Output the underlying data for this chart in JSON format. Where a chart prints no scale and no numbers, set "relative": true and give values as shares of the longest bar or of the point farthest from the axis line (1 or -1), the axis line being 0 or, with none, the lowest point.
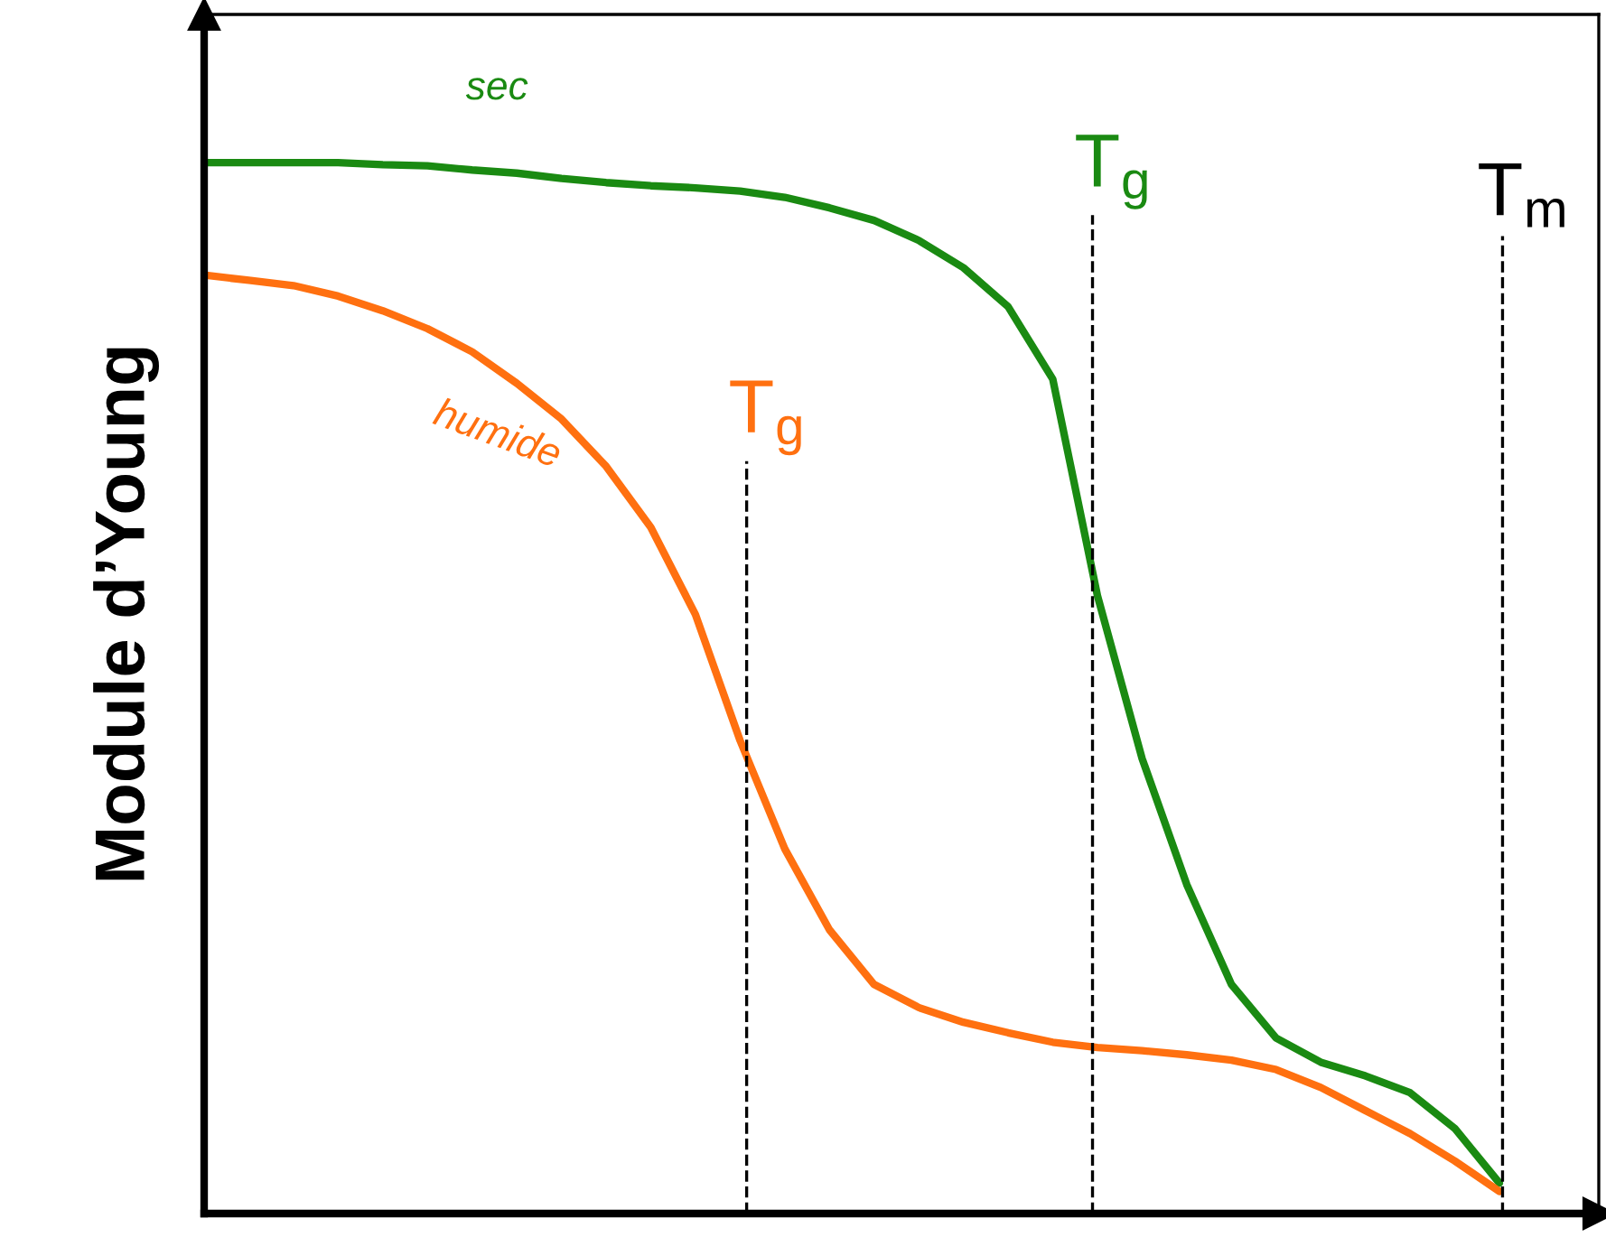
{
  "chart_data": {
    "type": "line",
    "relative": true,
    "ylabel": "Module d’Young",
    "marker": "none",
    "line_style": "solid",
    "categories": [
      null,
      null,
      null,
      null,
      null,
      null,
      null,
      null,
      null,
      null,
      null,
      null,
      null,
      null,
      null,
      null,
      null,
      null,
      null,
      null,
      null,
      null,
      null,
      null,
      null,
      null,
      null,
      null,
      null,
      null
    ],
    "series": [
      {
        "name": "sec",
        "color": "#1a8a12",
        "values": [
          1.0,
          1.0,
          1.0,
          1.0,
          0.998,
          0.997,
          0.993,
          0.99,
          0.985,
          0.981,
          0.978,
          0.976,
          0.973,
          0.967,
          0.957,
          0.945,
          0.926,
          0.9,
          0.863,
          0.794,
          0.588,
          0.433,
          0.313,
          0.218,
          0.167,
          0.144,
          0.131,
          0.115,
          0.081,
          0.029
        ]
      },
      {
        "name": "humide",
        "color": "#ff7010",
        "values": [
          0.893,
          0.888,
          0.883,
          0.873,
          0.859,
          0.842,
          0.82,
          0.79,
          0.756,
          0.711,
          0.653,
          0.57,
          0.45,
          0.347,
          0.27,
          0.218,
          0.196,
          0.182,
          0.172,
          0.163,
          0.158,
          0.155,
          0.151,
          0.146,
          0.137,
          0.12,
          0.098,
          0.076,
          0.05,
          0.021
        ]
      }
    ],
    "annotations": [
      "T$_{g}$",
      "T$_{g}$",
      "T$_{m}$"
    ]
  }
}
